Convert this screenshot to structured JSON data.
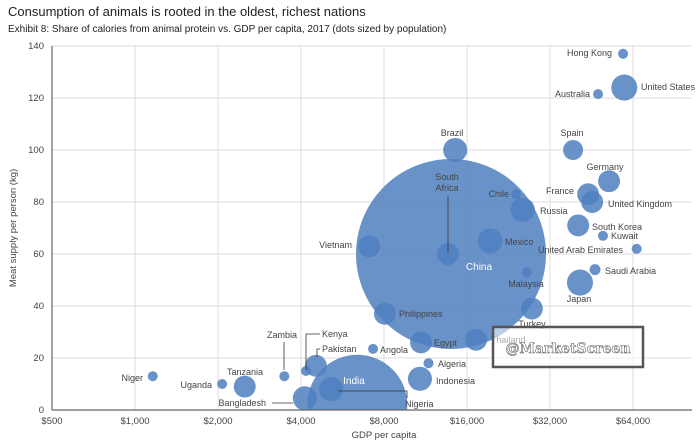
{
  "header": {
    "title": "Consumption of animals is rooted in the oldest, richest nations",
    "subtitle": "Exhibit 8: Share of calories from animal protein vs. GDP per capita, 2017 (dots sized by population)"
  },
  "watermark": "@MarketScreen",
  "chart_data": {
    "type": "scatter",
    "title": "Exhibit 8: Share of calories from animal protein vs. GDP per capita, 2017 (dots sized by population)",
    "xlabel": "GDP per capita",
    "ylabel": "Meat supply per person (kg)",
    "x_scale": "log2",
    "xlim": [
      500,
      90000
    ],
    "ylim": [
      0,
      140
    ],
    "x_ticks": [
      500,
      1000,
      2000,
      4000,
      8000,
      16000,
      32000,
      64000
    ],
    "x_tick_labels": [
      "$500",
      "$1,000",
      "$2,000",
      "$4,000",
      "$8,000",
      "$16,000",
      "$32,000",
      "$64,000"
    ],
    "y_ticks": [
      0,
      20,
      40,
      60,
      80,
      100,
      120,
      140
    ],
    "y_tick_labels": [
      "0",
      "20",
      "40",
      "60",
      "80",
      "100",
      "120",
      "140"
    ],
    "grid": true,
    "bubble_color": "#4f7fc0",
    "size_note": "relative bubble size (population)",
    "points": [
      {
        "label": "Hong Kong",
        "x": 58900,
        "y": 137,
        "size": 1
      },
      {
        "label": "United States",
        "x": 59500,
        "y": 124,
        "size": 6.8
      },
      {
        "label": "Australia",
        "x": 47800,
        "y": 121.5,
        "size": 1
      },
      {
        "label": "Spain",
        "x": 38800,
        "y": 100,
        "size": 4
      },
      {
        "label": "Brazil",
        "x": 14500,
        "y": 100,
        "size": 5.8
      },
      {
        "label": "Germany",
        "x": 52400,
        "y": 88,
        "size": 4.8
      },
      {
        "label": "Chile",
        "x": 24100,
        "y": 83,
        "size": 1
      },
      {
        "label": "France",
        "x": 44000,
        "y": 83,
        "size": 4.8
      },
      {
        "label": "United Kingdom",
        "x": 45500,
        "y": 80,
        "size": 4.8
      },
      {
        "label": "Russia",
        "x": 25500,
        "y": 77,
        "size": 5.8
      },
      {
        "label": "South Korea",
        "x": 40500,
        "y": 71,
        "size": 4.8
      },
      {
        "label": "Kuwait",
        "x": 49800,
        "y": 67,
        "size": 1
      },
      {
        "label": "Mexico",
        "x": 19400,
        "y": 65,
        "size": 6.2
      },
      {
        "label": "Vietnam",
        "x": 7070,
        "y": 63,
        "size": 4.8
      },
      {
        "label": "United Arab Emirates",
        "x": 66000,
        "y": 62,
        "size": 1
      },
      {
        "label": "China",
        "x": 14000,
        "y": 60,
        "size": 361
      },
      {
        "label": "South Africa",
        "x": 13650,
        "y": 60,
        "size": 4.8
      },
      {
        "label": "Malaysia",
        "x": 26400,
        "y": 53,
        "size": 1
      },
      {
        "label": "Saudi Arabia",
        "x": 46600,
        "y": 54,
        "size": 1.2
      },
      {
        "label": "Japan",
        "x": 41100,
        "y": 49,
        "size": 6.8
      },
      {
        "label": "Turkey",
        "x": 27500,
        "y": 39,
        "size": 4.8
      },
      {
        "label": "Philippines",
        "x": 8060,
        "y": 37,
        "size": 4.8
      },
      {
        "label": "Egypt",
        "x": 10900,
        "y": 26,
        "size": 4.8
      },
      {
        "label": "Thailand",
        "x": 17250,
        "y": 27,
        "size": 4.8
      },
      {
        "label": "Angola",
        "x": 7300,
        "y": 23.5,
        "size": 1
      },
      {
        "label": "Algeria",
        "x": 11600,
        "y": 18,
        "size": 1
      },
      {
        "label": "India",
        "x": 6400,
        "y": 2,
        "size": 100
      },
      {
        "label": "Pakistan",
        "x": 4530,
        "y": 17,
        "size": 4.8
      },
      {
        "label": "Kenya",
        "x": 4170,
        "y": 15,
        "size": 1
      },
      {
        "label": "Zambia",
        "x": 3480,
        "y": 13,
        "size": 1
      },
      {
        "label": "Niger",
        "x": 1160,
        "y": 13,
        "size": 1
      },
      {
        "label": "Uganda",
        "x": 2070,
        "y": 10,
        "size": 1
      },
      {
        "label": "Tanzania",
        "x": 2500,
        "y": 9,
        "size": 4.8
      },
      {
        "label": "Indonesia",
        "x": 10800,
        "y": 12,
        "size": 5.8
      },
      {
        "label": "Nigeria",
        "x": 5140,
        "y": 8,
        "size": 5.8
      },
      {
        "label": "Bangladesh",
        "x": 4130,
        "y": 4.5,
        "size": 5.8
      }
    ]
  }
}
